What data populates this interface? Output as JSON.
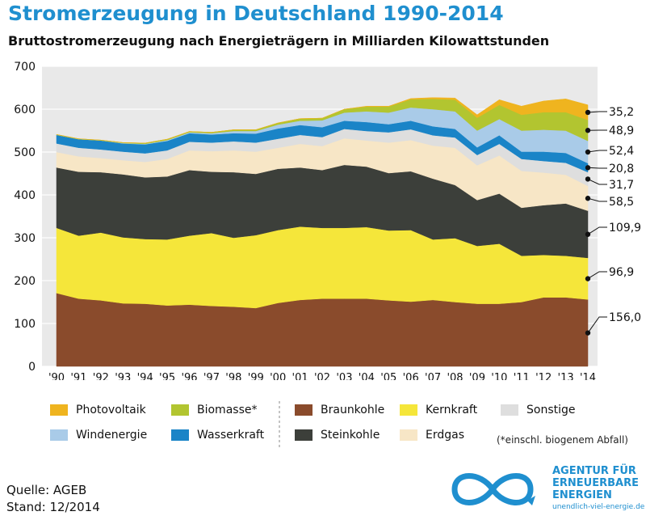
{
  "chart_data": {
    "type": "area",
    "stacked": true,
    "title": "Stromerzeugung in Deutschland 1990-2014",
    "subtitle": "Bruttostromerzeugung nach Energieträgern in Milliarden Kilowattstunden",
    "x": [
      1990,
      1991,
      1992,
      1993,
      1994,
      1995,
      1996,
      1997,
      1998,
      1999,
      2000,
      2001,
      2002,
      2003,
      2004,
      2005,
      2006,
      2007,
      2008,
      2009,
      2010,
      2011,
      2012,
      2013,
      2014
    ],
    "x_tick_labels": [
      "'90",
      "'91",
      "'92",
      "'93",
      "'94",
      "'95",
      "'96",
      "'97",
      "'98",
      "'99",
      "'00",
      "'01",
      "'02",
      "'03",
      "'04",
      "'05",
      "'06",
      "'07",
      "'08",
      "'09",
      "'10",
      "'11",
      "'12",
      "'13",
      "'14"
    ],
    "ylim": [
      0,
      700
    ],
    "y_ticks": [
      0,
      100,
      200,
      300,
      400,
      500,
      600,
      700
    ],
    "grid": true,
    "series": [
      {
        "name": "Braunkohle",
        "color": "#8a4b2c",
        "values": [
          171,
          158,
          154,
          147,
          146,
          142,
          144,
          141,
          139,
          136,
          148,
          155,
          158,
          158,
          158,
          154,
          151,
          155,
          150,
          146,
          146,
          150,
          161,
          161,
          156
        ]
      },
      {
        "name": "Kernkraft",
        "color": "#f5e63a",
        "values": [
          152,
          147,
          158,
          154,
          151,
          154,
          161,
          170,
          161,
          170,
          170,
          171,
          165,
          165,
          167,
          163,
          167,
          141,
          149,
          135,
          140,
          108,
          99,
          97,
          97
        ]
      },
      {
        "name": "Steinkohle",
        "color": "#3c3f3a",
        "values": [
          141,
          149,
          141,
          147,
          144,
          147,
          153,
          143,
          153,
          143,
          143,
          138,
          135,
          147,
          141,
          134,
          137,
          142,
          124,
          107,
          117,
          112,
          116,
          122,
          110
        ]
      },
      {
        "name": "Erdgas",
        "color": "#f7e6c6",
        "values": [
          36,
          36,
          33,
          33,
          36,
          41,
          46,
          48,
          51,
          52,
          49,
          55,
          56,
          62,
          61,
          71,
          73,
          77,
          87,
          81,
          89,
          86,
          76,
          67,
          58
        ]
      },
      {
        "name": "Sonstige",
        "color": "#dedede",
        "values": [
          20,
          20,
          20,
          20,
          20,
          20,
          20,
          20,
          21,
          21,
          21,
          21,
          21,
          22,
          22,
          24,
          25,
          24,
          24,
          24,
          27,
          28,
          27,
          28,
          32
        ]
      },
      {
        "name": "Wasserkraft",
        "color": "#1a84c7",
        "values": [
          20,
          20,
          21,
          19,
          21,
          22,
          20,
          19,
          19,
          21,
          24,
          23,
          23,
          19,
          21,
          19,
          20,
          21,
          20,
          18,
          20,
          17,
          22,
          23,
          21
        ]
      },
      {
        "name": "Windenergie",
        "color": "#a9cbe8",
        "values": [
          0,
          0,
          0,
          1,
          1,
          2,
          2,
          3,
          5,
          6,
          9,
          10,
          16,
          19,
          25,
          27,
          31,
          40,
          41,
          39,
          38,
          49,
          51,
          52,
          52
        ]
      },
      {
        "name": "Biomasse*",
        "color": "#b2c530",
        "values": [
          1,
          1,
          1,
          1,
          2,
          2,
          2,
          2,
          3,
          3,
          4,
          5,
          5,
          8,
          11,
          14,
          19,
          24,
          27,
          30,
          33,
          37,
          41,
          43,
          49
        ]
      },
      {
        "name": "Photovoltaik",
        "color": "#efb41f",
        "values": [
          0,
          0,
          0,
          0,
          0,
          0,
          0,
          0,
          0,
          0,
          0,
          0,
          0,
          0,
          1,
          1,
          2,
          3,
          4,
          7,
          12,
          20,
          26,
          31,
          35
        ]
      }
    ],
    "end_labels": [
      {
        "series": "Photovoltaik",
        "label": "35,2"
      },
      {
        "series": "Biomasse*",
        "label": "48,9"
      },
      {
        "series": "Windenergie",
        "label": "52,4"
      },
      {
        "series": "Wasserkraft",
        "label": "20,8"
      },
      {
        "series": "Sonstige",
        "label": "31,7"
      },
      {
        "series": "Erdgas",
        "label": "58,5"
      },
      {
        "series": "Steinkohle",
        "label": "109,9"
      },
      {
        "series": "Kernkraft",
        "label": "96,9"
      },
      {
        "series": "Braunkohle",
        "label": "156,0"
      }
    ]
  },
  "legend": {
    "items": [
      {
        "name": "Photovoltaik",
        "color": "#efb41f"
      },
      {
        "name": "Biomasse*",
        "color": "#b2c530"
      },
      {
        "name": "Braunkohle",
        "color": "#8a4b2c"
      },
      {
        "name": "Kernkraft",
        "color": "#f5e63a"
      },
      {
        "name": "Sonstige",
        "color": "#dedede"
      },
      {
        "name": "Windenergie",
        "color": "#a9cbe8"
      },
      {
        "name": "Wasserkraft",
        "color": "#1a84c7"
      },
      {
        "name": "Steinkohle",
        "color": "#3c3f3a"
      },
      {
        "name": "Erdgas",
        "color": "#f7e6c6"
      }
    ],
    "note": "(*einschl. biogenem Abfall)"
  },
  "footer": {
    "source": "Quelle: AGEB",
    "date": "Stand: 12/2014"
  },
  "logo": {
    "line1": "AGENTUR FÜR",
    "line2": "ERNEUERBARE",
    "line3": "ENERGIEN",
    "url": "unendlich-viel-energie.de",
    "color": "#1f8fcf"
  }
}
